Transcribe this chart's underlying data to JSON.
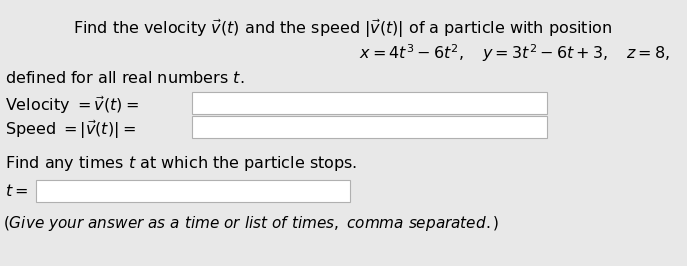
{
  "bg_color": "#e8e8e8",
  "white": "#ffffff",
  "text_color": "#000000",
  "box_edge_color": "#b0b0b0",
  "line1": "Find the velocity $\\vec{v}(t)$ and the speed $|\\vec{v}(t)|$ of a particle with position",
  "line2": "$x = 4t^3 - 6t^2, \\quad y = 3t^2 - 6t + 3, \\quad z = 8,$",
  "line3": "defined for all real numbers $t$.",
  "label_velocity": "Velocity $= \\vec{v}(t) =$",
  "label_speed": "Speed $= |\\vec{v}(t)| =$",
  "line_find": "Find any times $t$ at which the particle stops.",
  "label_t": "$t =$",
  "footnote": "$(Give\\ your\\ answer\\ as\\ a\\ time\\ or\\ list\\ of\\ times,\\ comma\\ separated.)$",
  "fontsize_main": 11.5,
  "fontsize_footnote": 11
}
